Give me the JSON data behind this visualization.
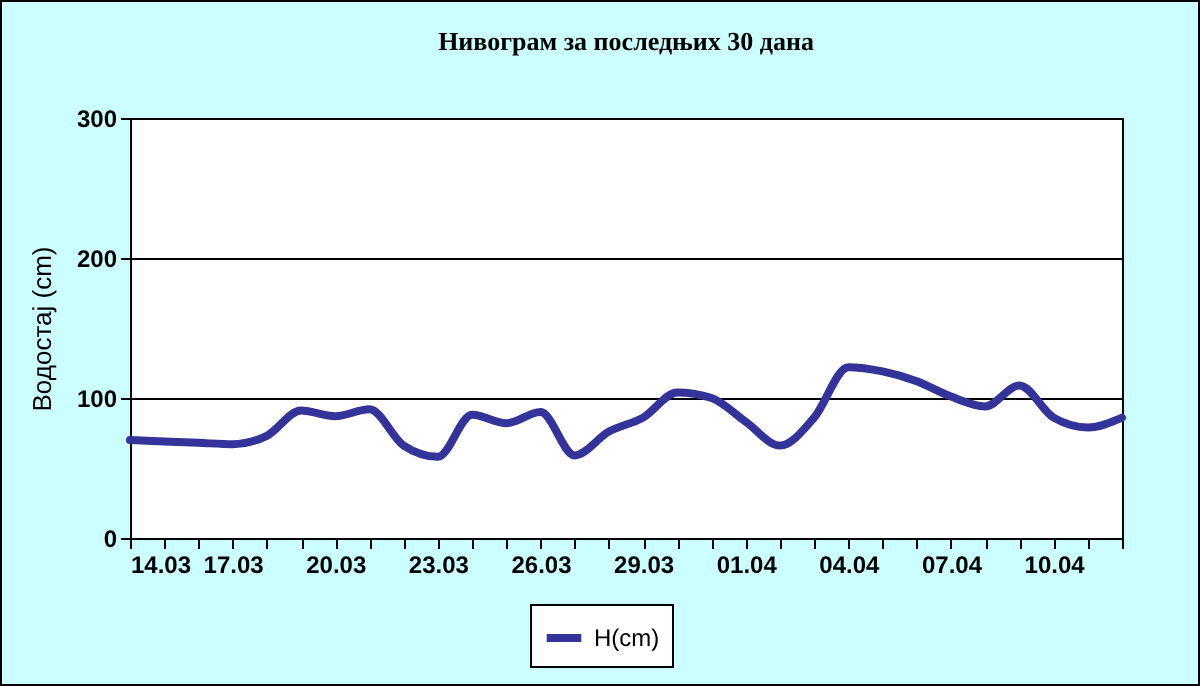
{
  "chart_data": {
    "type": "line",
    "title": "Нивограм за последњих 30 дана",
    "ylabel": "Водостај (cm)",
    "x": [
      "--03-14",
      "--03-15",
      "--03-16",
      "--03-17",
      "--03-18",
      "--03-19",
      "--03-20",
      "--03-21",
      "--03-22",
      "--03-23",
      "--03-24",
      "--03-25",
      "--03-26",
      "--03-27",
      "--03-28",
      "--03-29",
      "--03-30",
      "--03-31",
      "--04-01",
      "--04-02",
      "--04-03",
      "--04-04",
      "--04-05",
      "--04-06",
      "--04-07",
      "--04-08",
      "--04-09",
      "--04-10",
      "--04-11",
      "--04-12"
    ],
    "series": [
      {
        "name": "H(cm)",
        "color": "#333399",
        "values": [
          70,
          69,
          68,
          67,
          73,
          91,
          87,
          92,
          66,
          58,
          88,
          82,
          90,
          59,
          76,
          86,
          104,
          100,
          83,
          66,
          86,
          122,
          119,
          112,
          101,
          94,
          109,
          86,
          79,
          86
        ]
      }
    ],
    "xlim": [
      "--03-14",
      "--04-12"
    ],
    "xticks": [
      {
        "value": "--03-14",
        "label": "14.03"
      },
      {
        "value": "--03-15",
        "label": null
      },
      {
        "value": "--03-16",
        "label": null
      },
      {
        "value": "--03-17",
        "label": "17.03"
      },
      {
        "value": "--03-18",
        "label": null
      },
      {
        "value": "--03-19",
        "label": null
      },
      {
        "value": "--03-20",
        "label": "20.03"
      },
      {
        "value": "--03-21",
        "label": null
      },
      {
        "value": "--03-22",
        "label": null
      },
      {
        "value": "--03-23",
        "label": "23.03"
      },
      {
        "value": "--03-24",
        "label": null
      },
      {
        "value": "--03-25",
        "label": null
      },
      {
        "value": "--03-26",
        "label": "26.03"
      },
      {
        "value": "--03-27",
        "label": null
      },
      {
        "value": "--03-28",
        "label": null
      },
      {
        "value": "--03-29",
        "label": "29.03"
      },
      {
        "value": "--03-30",
        "label": null
      },
      {
        "value": "--03-31",
        "label": null
      },
      {
        "value": "--04-01",
        "label": "01.04"
      },
      {
        "value": "--04-02",
        "label": null
      },
      {
        "value": "--04-03",
        "label": null
      },
      {
        "value": "--04-04",
        "label": "04.04"
      },
      {
        "value": "--04-05",
        "label": null
      },
      {
        "value": "--04-06",
        "label": null
      },
      {
        "value": "--04-07",
        "label": "07.04"
      },
      {
        "value": "--04-08",
        "label": null
      },
      {
        "value": "--04-09",
        "label": null
      },
      {
        "value": "--04-10",
        "label": "10.04"
      },
      {
        "value": "--04-11",
        "label": null
      },
      {
        "value": "--04-12",
        "label": null
      }
    ],
    "ylim": [
      0,
      300
    ],
    "yticks": [
      0,
      100,
      200,
      300
    ],
    "grid": "y",
    "legend": "bottom",
    "marker": "none",
    "line_style": "solid"
  }
}
